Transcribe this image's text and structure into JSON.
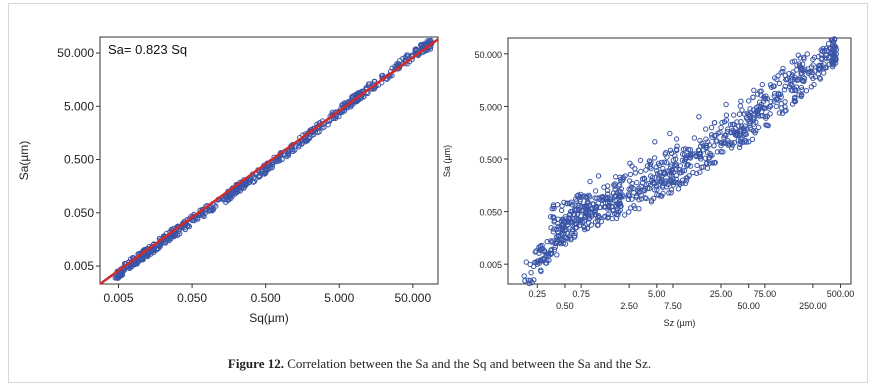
{
  "caption": {
    "label": "Figure 12.",
    "text": "Correlation between the Sa and the Sq and between the Sa and the Sz."
  },
  "colors": {
    "points": "#3a55a6",
    "fit_line": "#d42a2a",
    "axis": "#333333",
    "plot_bg": "#ffffff"
  },
  "chart_data": [
    {
      "type": "scatter",
      "title": "",
      "xlabel": "Sq(µm)",
      "ylabel": "Sa(µm)",
      "xscale": "log",
      "yscale": "log",
      "xlim": [
        0.0028,
        110
      ],
      "ylim": [
        0.0023,
        100
      ],
      "xticks": [
        0.005,
        0.05,
        0.5,
        5,
        50
      ],
      "xtick_labels": [
        "0.005",
        "0.050",
        "0.500",
        "5.000",
        "50.000"
      ],
      "yticks": [
        0.005,
        0.05,
        0.5,
        5,
        50
      ],
      "ytick_labels": [
        "0.005",
        "0.050",
        "0.500",
        "5.000",
        "50.000"
      ],
      "grid": false,
      "annotation": "Sa= 0.823 Sq",
      "fit_line": {
        "slope": 0.823,
        "x_range": [
          0.0028,
          110
        ]
      },
      "series": [
        {
          "x": [
            0.0045,
            0.006,
            0.008,
            0.01,
            0.012,
            0.015,
            0.02,
            0.025,
            0.03,
            0.04,
            0.05,
            0.07,
            0.1,
            0.15,
            0.2,
            0.3,
            0.5,
            0.7,
            1,
            1.5,
            2,
            3,
            5,
            7,
            10,
            15,
            20,
            30,
            50,
            70,
            90
          ],
          "y": [
            0.003,
            0.0045,
            0.006,
            0.0075,
            0.009,
            0.011,
            0.015,
            0.019,
            0.022,
            0.029,
            0.036,
            0.05,
            0.07,
            0.1,
            0.14,
            0.2,
            0.34,
            0.49,
            0.72,
            1.1,
            1.5,
            2.3,
            4.0,
            5.8,
            8.5,
            13,
            17.5,
            27,
            46,
            64,
            75
          ]
        }
      ]
    },
    {
      "type": "scatter",
      "title": "",
      "xlabel": "Sz (µm)",
      "ylabel": "Sa (µm)",
      "xscale": "log",
      "yscale": "log",
      "xlim": [
        0.12,
        650
      ],
      "ylim": [
        0.0021,
        100
      ],
      "xticks": [
        0.25,
        0.5,
        0.75,
        2.5,
        5,
        7.5,
        25,
        50,
        75,
        250,
        500
      ],
      "xtick_labels": [
        "0.25",
        "0.50",
        "0.75",
        "2.50",
        "5.00",
        "7.50",
        "25.00",
        "50.00",
        "75.00",
        "250.00",
        "500.00"
      ],
      "yticks": [
        0.005,
        0.05,
        0.5,
        5,
        50
      ],
      "ytick_labels": [
        "0.005",
        "0.050",
        "0.500",
        "5.000",
        "50.000"
      ],
      "grid": false,
      "series": [
        {
          "x": [
            0.18,
            0.25,
            0.3,
            0.4,
            0.5,
            0.7,
            1,
            1.5,
            2,
            3,
            5,
            7,
            10,
            15,
            25,
            40,
            60,
            100,
            150,
            200,
            300,
            400,
            450,
            0.35,
            0.6,
            1,
            2,
            5,
            10,
            20,
            50,
            80,
            150,
            200
          ],
          "y": [
            0.003,
            0.005,
            0.009,
            0.013,
            0.022,
            0.035,
            0.045,
            0.06,
            0.07,
            0.1,
            0.15,
            0.2,
            0.3,
            0.5,
            0.9,
            1.5,
            2.5,
            5,
            10,
            15,
            30,
            50,
            60,
            0.04,
            0.05,
            0.07,
            0.12,
            0.3,
            0.6,
            1.3,
            3.5,
            7,
            20,
            40
          ]
        }
      ]
    }
  ]
}
